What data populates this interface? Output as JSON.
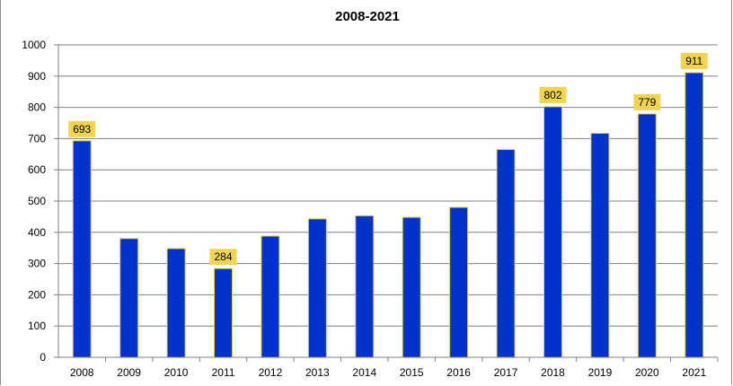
{
  "chart_data": {
    "type": "bar",
    "title": "2008-2021",
    "xlabel": "",
    "ylabel": "",
    "categories": [
      "2008",
      "2009",
      "2010",
      "2011",
      "2012",
      "2013",
      "2014",
      "2015",
      "2016",
      "2017",
      "2018",
      "2019",
      "2020",
      "2021"
    ],
    "values": [
      693,
      380,
      348,
      284,
      388,
      443,
      453,
      448,
      480,
      665,
      802,
      717,
      779,
      911
    ],
    "data_labels": {
      "2008": "693",
      "2011": "284",
      "2018": "802",
      "2020": "779",
      "2021": "911"
    },
    "ylim": [
      0,
      1000
    ],
    "yticks": [
      "0",
      "100",
      "200",
      "300",
      "400",
      "500",
      "600",
      "700",
      "800",
      "900",
      "1000"
    ],
    "grid": true,
    "legend": "none",
    "colors": {
      "bar_fill": "#0033cc",
      "bar_edge": "#e6c84a",
      "label_bg": "#f2d44e",
      "grid": "#7f7f7f",
      "axis": "#7f7f7f"
    }
  }
}
